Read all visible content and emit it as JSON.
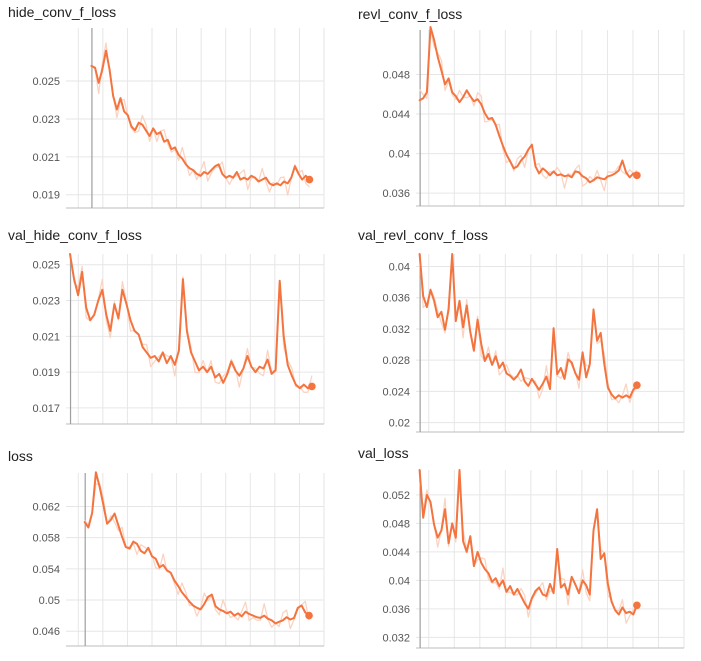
{
  "theme": {
    "line_color": "#f4743f",
    "raw_color": "#fbd3c2",
    "grid_color": "#e6e6e6",
    "axis_color": "#9e9e9e"
  },
  "chart_data": [
    {
      "type": "line",
      "title": "hide_conv_f_loss",
      "xlabel": "",
      "ylabel": "",
      "ylim": [
        0.0183,
        0.0278
      ],
      "yticks": [
        0.019,
        0.021,
        0.023,
        0.025
      ],
      "ytick_labels": [
        "0.019",
        "0.021",
        "0.023",
        "0.025"
      ],
      "grid": true,
      "x": [
        0,
        1,
        2,
        3,
        4,
        5,
        6,
        7,
        8,
        9,
        10,
        11,
        12,
        13,
        14,
        15,
        16,
        17,
        18,
        19,
        20,
        21,
        22,
        23,
        24,
        25,
        26,
        27,
        28,
        29,
        30,
        31,
        32,
        33,
        34,
        35,
        36,
        37,
        38,
        39,
        40,
        41,
        42,
        43,
        44,
        45,
        46,
        47,
        48,
        49,
        50,
        51,
        52,
        53,
        54,
        55,
        56,
        57,
        58,
        59,
        60
      ],
      "series": [
        {
          "values": [
            0.0258,
            0.0257,
            0.0249,
            0.0256,
            0.0266,
            0.0256,
            0.0242,
            0.0235,
            0.0241,
            0.0234,
            0.0232,
            0.0226,
            0.0224,
            0.0228,
            0.0227,
            0.0224,
            0.0221,
            0.0225,
            0.0222,
            0.0223,
            0.0218,
            0.0219,
            0.0214,
            0.0215,
            0.0211,
            0.0209,
            0.0206,
            0.0204,
            0.0203,
            0.0201,
            0.02,
            0.0202,
            0.0201,
            0.0203,
            0.0205,
            0.0206,
            0.0201,
            0.0199,
            0.02,
            0.0199,
            0.0202,
            0.0198,
            0.0199,
            0.0198,
            0.02,
            0.0199,
            0.0197,
            0.0198,
            0.0199,
            0.0196,
            0.0195,
            0.0196,
            0.0195,
            0.0197,
            0.0196,
            0.0199,
            0.0205,
            0.0201,
            0.0198,
            0.02,
            0.0198
          ]
        }
      ]
    },
    {
      "type": "line",
      "title": "revl_conv_f_loss",
      "xlabel": "",
      "ylabel": "",
      "ylim": [
        0.0347,
        0.0525
      ],
      "yticks": [
        0.036,
        0.04,
        0.044,
        0.048
      ],
      "ytick_labels": [
        "0.036",
        "0.04",
        "0.044",
        "0.048"
      ],
      "grid": true,
      "x": [
        0,
        1,
        2,
        3,
        4,
        5,
        6,
        7,
        8,
        9,
        10,
        11,
        12,
        13,
        14,
        15,
        16,
        17,
        18,
        19,
        20,
        21,
        22,
        23,
        24,
        25,
        26,
        27,
        28,
        29,
        30,
        31,
        32,
        33,
        34,
        35,
        36,
        37,
        38,
        39,
        40,
        41,
        42,
        43,
        44,
        45,
        46,
        47,
        48,
        49,
        50,
        51,
        52,
        53,
        54,
        55,
        56,
        57,
        58,
        59,
        60
      ],
      "series": [
        {
          "values": [
            0.0454,
            0.0456,
            0.0462,
            0.0528,
            0.0515,
            0.0498,
            0.0484,
            0.047,
            0.0476,
            0.0462,
            0.0458,
            0.0452,
            0.0457,
            0.0464,
            0.0458,
            0.0453,
            0.0455,
            0.045,
            0.0441,
            0.0435,
            0.0436,
            0.0429,
            0.0418,
            0.0408,
            0.0399,
            0.0392,
            0.0385,
            0.0387,
            0.0393,
            0.0397,
            0.0404,
            0.0409,
            0.0387,
            0.038,
            0.0385,
            0.0382,
            0.0378,
            0.0382,
            0.0378,
            0.0379,
            0.0377,
            0.0378,
            0.0376,
            0.0382,
            0.0381,
            0.0377,
            0.0375,
            0.0371,
            0.0373,
            0.0376,
            0.0375,
            0.0374,
            0.0377,
            0.0378,
            0.038,
            0.0383,
            0.0393,
            0.0381,
            0.0376,
            0.038,
            0.0378
          ]
        }
      ]
    },
    {
      "type": "line",
      "title": "val_hide_conv_f_loss",
      "xlabel": "",
      "ylabel": "",
      "ylim": [
        0.0161,
        0.0256
      ],
      "yticks": [
        0.017,
        0.019,
        0.021,
        0.023,
        0.025
      ],
      "ytick_labels": [
        "0.017",
        "0.019",
        "0.021",
        "0.023",
        "0.025"
      ],
      "grid": true,
      "x": [
        0,
        1,
        2,
        3,
        4,
        5,
        6,
        7,
        8,
        9,
        10,
        11,
        12,
        13,
        14,
        15,
        16,
        17,
        18,
        19,
        20,
        21,
        22,
        23,
        24,
        25,
        26,
        27,
        28,
        29,
        30,
        31,
        32,
        33,
        34,
        35,
        36,
        37,
        38,
        39,
        40,
        41,
        42,
        43,
        44,
        45,
        46,
        47,
        48,
        49,
        50,
        51,
        52,
        53,
        54,
        55,
        56,
        57,
        58,
        59,
        60
      ],
      "series": [
        {
          "values": [
            0.0256,
            0.0242,
            0.0233,
            0.0246,
            0.0226,
            0.0219,
            0.0222,
            0.023,
            0.0236,
            0.0222,
            0.0213,
            0.0228,
            0.022,
            0.0236,
            0.0228,
            0.0219,
            0.0213,
            0.0211,
            0.0204,
            0.0201,
            0.0198,
            0.0199,
            0.0196,
            0.0201,
            0.0195,
            0.0199,
            0.0194,
            0.0202,
            0.0242,
            0.0213,
            0.0201,
            0.0196,
            0.0191,
            0.0193,
            0.019,
            0.0193,
            0.0187,
            0.0189,
            0.0184,
            0.0189,
            0.0196,
            0.0191,
            0.0188,
            0.0192,
            0.0199,
            0.0193,
            0.019,
            0.0193,
            0.0192,
            0.0197,
            0.0189,
            0.0191,
            0.0241,
            0.021,
            0.0194,
            0.0188,
            0.0183,
            0.0181,
            0.0183,
            0.0181,
            0.0182
          ]
        }
      ]
    },
    {
      "type": "line",
      "title": "val_revl_conv_f_loss",
      "xlabel": "",
      "ylabel": "",
      "ylim": [
        0.0188,
        0.0416
      ],
      "yticks": [
        0.02,
        0.024,
        0.028,
        0.032,
        0.036,
        0.04
      ],
      "ytick_labels": [
        "0.02",
        "0.024",
        "0.028",
        "0.032",
        "0.036",
        "0.04"
      ],
      "grid": true,
      "x": [
        0,
        1,
        2,
        3,
        4,
        5,
        6,
        7,
        8,
        9,
        10,
        11,
        12,
        13,
        14,
        15,
        16,
        17,
        18,
        19,
        20,
        21,
        22,
        23,
        24,
        25,
        26,
        27,
        28,
        29,
        30,
        31,
        32,
        33,
        34,
        35,
        36,
        37,
        38,
        39,
        40,
        41,
        42,
        43,
        44,
        45,
        46,
        47,
        48,
        49,
        50,
        51,
        52,
        53,
        54,
        55,
        56,
        57,
        58,
        59,
        60
      ],
      "series": [
        {
          "values": [
            0.0416,
            0.0362,
            0.0348,
            0.037,
            0.0356,
            0.0335,
            0.0342,
            0.0319,
            0.0345,
            0.0416,
            0.033,
            0.0356,
            0.0322,
            0.035,
            0.0316,
            0.0292,
            0.0332,
            0.0301,
            0.0279,
            0.0288,
            0.0274,
            0.0285,
            0.027,
            0.0277,
            0.0263,
            0.026,
            0.0255,
            0.026,
            0.0268,
            0.0253,
            0.0247,
            0.0256,
            0.0249,
            0.0242,
            0.025,
            0.0259,
            0.0243,
            0.0321,
            0.0262,
            0.027,
            0.0256,
            0.0281,
            0.0277,
            0.0263,
            0.0255,
            0.029,
            0.0258,
            0.0275,
            0.0345,
            0.0305,
            0.0315,
            0.0275,
            0.0245,
            0.0236,
            0.0231,
            0.0235,
            0.0232,
            0.0235,
            0.0232,
            0.0242,
            0.0248
          ]
        }
      ]
    },
    {
      "type": "line",
      "title": "loss",
      "xlabel": "",
      "ylabel": "",
      "ylim": [
        0.0441,
        0.0663
      ],
      "yticks": [
        0.046,
        0.05,
        0.054,
        0.058,
        0.062
      ],
      "ytick_labels": [
        "0.046",
        "0.05",
        "0.054",
        "0.058",
        "0.062"
      ],
      "grid": true,
      "x": [
        0,
        1,
        2,
        3,
        4,
        5,
        6,
        7,
        8,
        9,
        10,
        11,
        12,
        13,
        14,
        15,
        16,
        17,
        18,
        19,
        20,
        21,
        22,
        23,
        24,
        25,
        26,
        27,
        28,
        29,
        30,
        31,
        32,
        33,
        34,
        35,
        36,
        37,
        38,
        39,
        40,
        41,
        42,
        43,
        44,
        45,
        46,
        47,
        48,
        49,
        50,
        51,
        52,
        53,
        54,
        55,
        56,
        57,
        58,
        59,
        60
      ],
      "series": [
        {
          "values": [
            0.06,
            0.0593,
            0.0612,
            0.0664,
            0.0645,
            0.0622,
            0.0598,
            0.0603,
            0.0611,
            0.0596,
            0.0581,
            0.0568,
            0.0566,
            0.0575,
            0.0572,
            0.0563,
            0.056,
            0.0567,
            0.0556,
            0.0553,
            0.0542,
            0.0545,
            0.0538,
            0.0535,
            0.0525,
            0.0518,
            0.051,
            0.0504,
            0.0498,
            0.0493,
            0.049,
            0.0488,
            0.0495,
            0.0504,
            0.0507,
            0.0492,
            0.0488,
            0.0486,
            0.0483,
            0.0485,
            0.048,
            0.0483,
            0.0479,
            0.0485,
            0.0482,
            0.048,
            0.0478,
            0.0477,
            0.048,
            0.0476,
            0.0474,
            0.047,
            0.0472,
            0.0474,
            0.0478,
            0.0475,
            0.0477,
            0.049,
            0.0493,
            0.0484,
            0.048
          ]
        }
      ]
    },
    {
      "type": "line",
      "title": "val_loss",
      "xlabel": "",
      "ylabel": "",
      "ylim": [
        0.0305,
        0.0555
      ],
      "yticks": [
        0.032,
        0.036,
        0.04,
        0.044,
        0.048,
        0.052
      ],
      "ytick_labels": [
        "0.032",
        "0.036",
        "0.04",
        "0.044",
        "0.048",
        "0.052"
      ],
      "grid": true,
      "x": [
        0,
        1,
        2,
        3,
        4,
        5,
        6,
        7,
        8,
        9,
        10,
        11,
        12,
        13,
        14,
        15,
        16,
        17,
        18,
        19,
        20,
        21,
        22,
        23,
        24,
        25,
        26,
        27,
        28,
        29,
        30,
        31,
        32,
        33,
        34,
        35,
        36,
        37,
        38,
        39,
        40,
        41,
        42,
        43,
        44,
        45,
        46,
        47,
        48,
        49,
        50,
        51,
        52,
        53,
        54,
        55,
        56,
        57,
        58,
        59,
        60
      ],
      "series": [
        {
          "values": [
            0.0555,
            0.0488,
            0.052,
            0.051,
            0.0478,
            0.046,
            0.047,
            0.05,
            0.0452,
            0.048,
            0.046,
            0.0555,
            0.0455,
            0.044,
            0.0462,
            0.042,
            0.044,
            0.0425,
            0.0416,
            0.041,
            0.0398,
            0.0403,
            0.0392,
            0.04,
            0.0384,
            0.0392,
            0.038,
            0.0388,
            0.0378,
            0.0368,
            0.036,
            0.0375,
            0.0385,
            0.039,
            0.038,
            0.0378,
            0.0395,
            0.0382,
            0.0444,
            0.039,
            0.0395,
            0.038,
            0.0405,
            0.0394,
            0.0382,
            0.04,
            0.0393,
            0.038,
            0.047,
            0.05,
            0.043,
            0.0438,
            0.0395,
            0.037,
            0.0358,
            0.0352,
            0.0362,
            0.0354,
            0.0356,
            0.0352,
            0.0365
          ]
        }
      ]
    }
  ]
}
